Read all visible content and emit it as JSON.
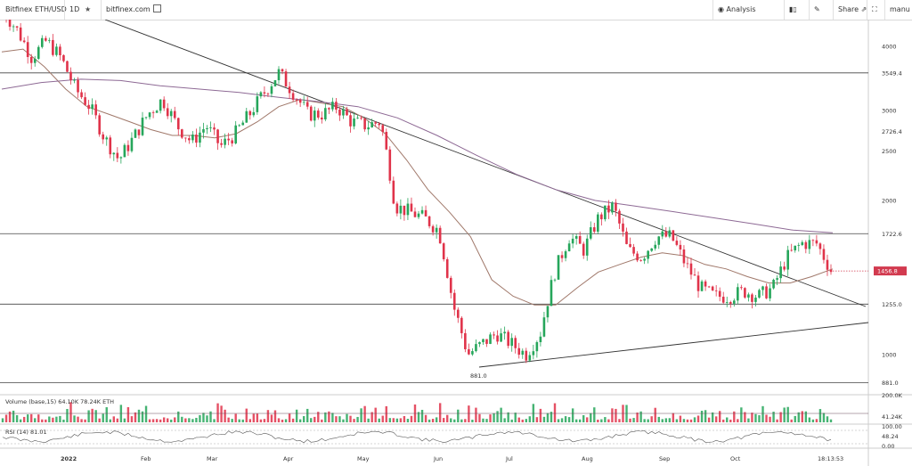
{
  "toolbar": {
    "symbol": "Bitfinex ETH/USD",
    "interval": "1D",
    "site": "bitfinex.com",
    "analysis": "Analysis",
    "share": "Share",
    "user": "manu"
  },
  "colors": {
    "up": "#26a65b",
    "down": "#e0334a",
    "ma_short": "#a0786a",
    "ma_long": "#8e6a95",
    "trendline": "#333333",
    "level": "#444444",
    "price_tag": "#d23a4f"
  },
  "chart_data": {
    "type": "candlestick",
    "title": "Bitfinex ETH/USD",
    "interval": "1D",
    "y_scale": "log",
    "ylim": [
      830,
      4700
    ],
    "y_ticks": [
      "4000",
      "3549.4",
      "3000",
      "2726.4",
      "2500",
      "2000",
      "1722.6",
      "1456.8",
      "1255.0",
      "1000",
      "881.0"
    ],
    "x_ticks": [
      "2022",
      "Feb",
      "Mar",
      "Apr",
      "May",
      "Jun",
      "Jul",
      "Aug",
      "Sep",
      "Oct",
      "18:13:53"
    ],
    "levels": [
      3549.4,
      1722.6,
      1255.0,
      881.0
    ],
    "current_price": 1456.8,
    "low_label": "881.0",
    "close_series": [
      4700,
      4300,
      3800,
      4100,
      3800,
      3300,
      3050,
      2650,
      2400,
      2650,
      2950,
      3150,
      2800,
      2600,
      2800,
      2550,
      2700,
      2950,
      3250,
      3550,
      3250,
      2950,
      2950,
      3050,
      2850,
      2800,
      2850,
      1950,
      1900,
      1850,
      1750,
      1250,
      1000,
      1050,
      1100,
      1050,
      1000,
      1100,
      1450,
      1700,
      1600,
      1850,
      1950,
      1600,
      1550,
      1700,
      1700,
      1500,
      1350,
      1300,
      1300,
      1330,
      1300,
      1350,
      1550,
      1650,
      1650,
      1460
    ],
    "ma_short": [
      3900,
      3950,
      3650,
      3300,
      3050,
      2950,
      2850,
      2750,
      2680,
      2680,
      2650,
      2700,
      2850,
      3050,
      3150,
      3100,
      3050,
      2900,
      2700,
      2400,
      2100,
      1900,
      1700,
      1400,
      1300,
      1250,
      1250,
      1350,
      1450,
      1500,
      1550,
      1580,
      1560,
      1500,
      1470,
      1420,
      1380,
      1380,
      1420,
      1470
    ],
    "ma_long": [
      3300,
      3400,
      3450,
      3430,
      3350,
      3300,
      3250,
      3180,
      3120,
      3050,
      2900,
      2680,
      2450,
      2250,
      2100,
      2000,
      1950,
      1900,
      1850,
      1800,
      1750,
      1730
    ],
    "volume": {
      "label": "Volume (base,15)",
      "value1": "64.10K",
      "value2": "78.24K ETH",
      "ticks": [
        "200.0K",
        "41.24K"
      ]
    },
    "rsi": {
      "label": "RSI (14)",
      "value": "81.01",
      "ticks": [
        "100.00",
        "48.24",
        "0.00"
      ]
    }
  }
}
